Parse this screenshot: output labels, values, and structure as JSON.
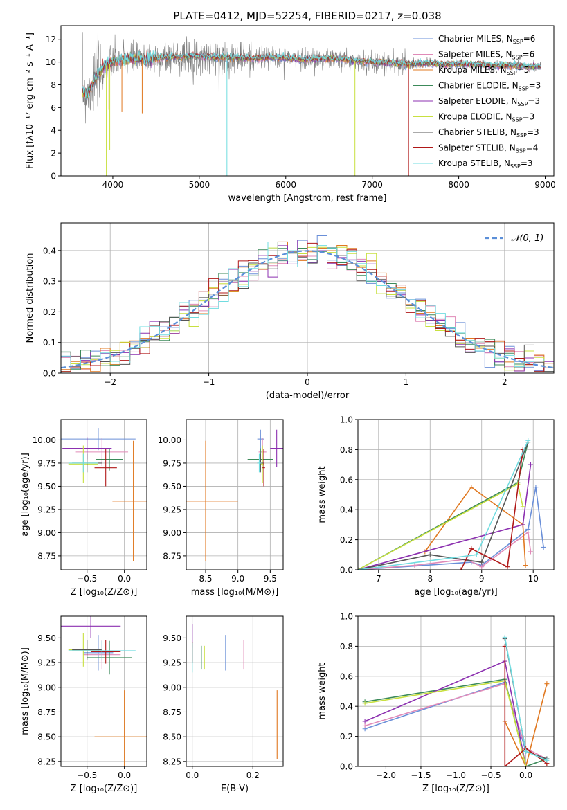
{
  "figure_title": "PLATE=0412, MJD=52254, FIBERID=0217, z=0.038",
  "colors": {
    "Chabrier MILES": "#6a8fd8",
    "Salpeter MILES": "#e08ab8",
    "Kroupa MILES": "#e07820",
    "Chabrier ELODIE": "#3c8a5a",
    "Salpeter ELODIE": "#8c30b0",
    "Kroupa ELODIE": "#c8e040",
    "Chabrier STELIB": "#555555",
    "Salpeter STELIB": "#b01818",
    "Kroupa STELIB": "#70dce0"
  },
  "chart_data": [
    {
      "type": "line",
      "id": "spectrum",
      "xlabel": "wavelength [Angstrom, rest frame]",
      "ylabel": "Flux [fλ10⁻¹⁷ erg cm⁻² s⁻¹ A⁻¹]",
      "xlim": [
        3400,
        9100
      ],
      "ylim": [
        0,
        13.2
      ],
      "xticks": [
        4000,
        5000,
        6000,
        7000,
        8000,
        9000
      ],
      "yticks": [
        0,
        2,
        4,
        6,
        8,
        10,
        12
      ],
      "grid": false,
      "legend_position": "top-right",
      "legend": [
        {
          "name": "Chabrier MILES",
          "nssp": "6"
        },
        {
          "name": "Salpeter MILES",
          "nssp": "6"
        },
        {
          "name": "Kroupa MILES",
          "nssp": "5"
        },
        {
          "name": "Chabrier ELODIE",
          "nssp": "3"
        },
        {
          "name": "Salpeter ELODIE",
          "nssp": "3"
        },
        {
          "name": "Kroupa ELODIE",
          "nssp": "3"
        },
        {
          "name": "Chabrier STELIB",
          "nssp": "3"
        },
        {
          "name": "Salpeter STELIB",
          "nssp": "4"
        },
        {
          "name": "Kroupa STELIB",
          "nssp": "3"
        }
      ],
      "data_continuum": {
        "x": [
          3650,
          3700,
          3750,
          3800,
          3900,
          4000,
          4200,
          4400,
          4600,
          4800,
          5000,
          5200,
          5400,
          5600,
          5800,
          6000,
          6200,
          6400,
          6600,
          6800,
          7000,
          7200,
          7400,
          7600,
          7800,
          8000,
          8200,
          8400,
          8600,
          8800,
          8950
        ],
        "y": [
          7.5,
          7.2,
          7.8,
          8.6,
          9.6,
          10.0,
          10.3,
          10.2,
          10.4,
          10.5,
          10.5,
          10.4,
          10.4,
          10.3,
          10.4,
          10.4,
          10.2,
          10.3,
          10.3,
          10.1,
          10.0,
          9.9,
          9.8,
          9.9,
          9.8,
          9.8,
          9.8,
          9.7,
          9.7,
          9.6,
          9.6
        ]
      },
      "dips": [
        {
          "series": "Kroupa ELODIE",
          "x": 3925,
          "y": 0
        },
        {
          "series": "Kroupa MILES",
          "x": 3955,
          "y": 5.8
        },
        {
          "series": "Kroupa ELODIE",
          "x": 3965,
          "y": 2.3
        },
        {
          "series": "Kroupa MILES",
          "x": 4105,
          "y": 5.6
        },
        {
          "series": "Kroupa MILES",
          "x": 4340,
          "y": 5.5
        },
        {
          "series": "Kroupa STELIB",
          "x": 5320,
          "y": 0
        },
        {
          "series": "Kroupa ELODIE",
          "x": 6800,
          "y": 0
        },
        {
          "series": "Salpeter STELIB",
          "x": 7420,
          "y": 0
        }
      ]
    },
    {
      "type": "histogram",
      "id": "residuals",
      "xlabel": "(data-model)/error",
      "ylabel": "Normed distribution",
      "xlim": [
        -2.5,
        2.5
      ],
      "ylim": [
        0,
        0.49
      ],
      "xticks": [
        -2,
        -1,
        0,
        1,
        2
      ],
      "yticks": [
        0.0,
        0.1,
        0.2,
        0.3,
        0.4
      ],
      "grid": true,
      "legend_position": "top-right",
      "reference_curve": {
        "name": "𝒩(0, 1)",
        "mean": 0,
        "sigma": 1,
        "color": "#5b8fd8"
      },
      "bin_width": 0.1
    },
    {
      "type": "errorbar",
      "id": "age-vs-Z",
      "xlabel": "Z [log₁₀(Z/Z⊙)]",
      "ylabel": "age  [log₁₀(age/yr)]",
      "xlim": [
        -0.85,
        0.3
      ],
      "ylim": [
        8.6,
        10.22
      ],
      "xticks": [
        -0.5,
        0.0
      ],
      "yticks": [
        8.75,
        9.0,
        9.25,
        9.5,
        9.75,
        10.0
      ],
      "grid": true,
      "points": [
        {
          "series": "Chabrier MILES",
          "x": -0.35,
          "xerr": 0.5,
          "y": 10.01,
          "yerr": 0.12
        },
        {
          "series": "Salpeter MILES",
          "x": -0.3,
          "xerr": 0.35,
          "y": 9.87,
          "yerr": 0.15
        },
        {
          "series": "Kroupa MILES",
          "x": 0.12,
          "xerr": 0.28,
          "y": 9.34,
          "yerr": 0.65
        },
        {
          "series": "Chabrier ELODIE",
          "x": -0.2,
          "xerr": 0.18,
          "y": 9.79,
          "yerr": 0.12
        },
        {
          "series": "Salpeter ELODIE",
          "x": -0.5,
          "xerr": 0.33,
          "y": 9.91,
          "yerr": 0.12
        },
        {
          "series": "Kroupa ELODIE",
          "x": -0.55,
          "xerr": 0.2,
          "y": 9.74,
          "yerr": 0.2
        },
        {
          "series": "Chabrier STELIB",
          "x": -0.5,
          "xerr": 0.2,
          "y": 9.75,
          "yerr": 0.1
        },
        {
          "series": "Salpeter STELIB",
          "x": -0.25,
          "xerr": 0.15,
          "y": 9.7,
          "yerr": 0.2
        },
        {
          "series": "Kroupa STELIB",
          "x": -0.55,
          "xerr": 0.2,
          "y": 9.75,
          "yerr": 0.1
        }
      ]
    },
    {
      "type": "errorbar",
      "id": "age-vs-mass",
      "xlabel": "mass [log₁₀(M/M⊙)]",
      "ylabel": "",
      "xlim": [
        8.2,
        9.7
      ],
      "ylim": [
        8.6,
        10.22
      ],
      "xticks": [
        8.5,
        9.0,
        9.5
      ],
      "yticks": [
        8.75,
        9.0,
        9.25,
        9.5,
        9.75,
        10.0
      ],
      "grid": true,
      "points": [
        {
          "series": "Chabrier MILES",
          "x": 9.35,
          "xerr": 0.05,
          "y": 10.01,
          "yerr": 0.1
        },
        {
          "series": "Salpeter MILES",
          "x": 9.38,
          "xerr": 0.06,
          "y": 9.87,
          "yerr": 0.15
        },
        {
          "series": "Kroupa MILES",
          "x": 8.5,
          "xerr": 0.5,
          "y": 9.34,
          "yerr": 0.65
        },
        {
          "series": "Chabrier ELODIE",
          "x": 9.35,
          "xerr": 0.2,
          "y": 9.79,
          "yerr": 0.12
        },
        {
          "series": "Salpeter ELODIE",
          "x": 9.6,
          "xerr": 0.1,
          "y": 9.91,
          "yerr": 0.2
        },
        {
          "series": "Kroupa ELODIE",
          "x": 9.38,
          "xerr": 0.03,
          "y": 9.74,
          "yerr": 0.2
        },
        {
          "series": "Chabrier STELIB",
          "x": 9.35,
          "xerr": 0.05,
          "y": 9.75,
          "yerr": 0.1
        },
        {
          "series": "Salpeter STELIB",
          "x": 9.4,
          "xerr": 0.02,
          "y": 9.7,
          "yerr": 0.2
        },
        {
          "series": "Kroupa STELIB",
          "x": 9.33,
          "xerr": 0.03,
          "y": 9.75,
          "yerr": 0.1
        }
      ]
    },
    {
      "type": "line",
      "id": "mass-weight-vs-age",
      "xlabel": "age  [log₁₀(age/yr)]",
      "ylabel": "mass weight",
      "xlim": [
        6.6,
        10.4
      ],
      "ylim": [
        0,
        1
      ],
      "xticks": [
        7,
        8,
        9,
        10
      ],
      "yticks": [
        0.0,
        0.2,
        0.4,
        0.6,
        0.8,
        1.0
      ],
      "grid": true,
      "series": [
        {
          "name": "Chabrier MILES",
          "x": [
            6.6,
            8.8,
            9.0,
            9.9,
            10.05,
            10.2
          ],
          "y": [
            0.0,
            0.05,
            0.03,
            0.27,
            0.55,
            0.15
          ]
        },
        {
          "name": "Salpeter MILES",
          "x": [
            6.6,
            7.7,
            8.7,
            9.0,
            9.9,
            9.95
          ],
          "y": [
            0.0,
            0.03,
            0.07,
            0.02,
            0.25,
            0.12
          ]
        },
        {
          "name": "Kroupa MILES",
          "x": [
            7.9,
            8.8,
            9.8,
            9.85
          ],
          "y": [
            0.12,
            0.55,
            0.3,
            0.03
          ]
        },
        {
          "name": "Chabrier ELODIE",
          "x": [
            6.6,
            9.7,
            9.9
          ],
          "y": [
            0.0,
            0.58,
            0.85
          ]
        },
        {
          "name": "Salpeter ELODIE",
          "x": [
            6.6,
            9.8,
            9.95
          ],
          "y": [
            0.0,
            0.3,
            0.7
          ]
        },
        {
          "name": "Kroupa ELODIE",
          "x": [
            6.6,
            9.7,
            9.8
          ],
          "y": [
            0.0,
            0.57,
            0.42
          ]
        },
        {
          "name": "Chabrier STELIB",
          "x": [
            6.6,
            8.0,
            9.0,
            9.9
          ],
          "y": [
            0.0,
            0.1,
            0.05,
            0.85
          ]
        },
        {
          "name": "Salpeter STELIB",
          "x": [
            8.6,
            8.8,
            9.5,
            9.8
          ],
          "y": [
            0.0,
            0.14,
            0.02,
            0.8
          ]
        },
        {
          "name": "Kroupa STELIB",
          "x": [
            6.6,
            8.9,
            9.9
          ],
          "y": [
            0.0,
            0.1,
            0.86
          ]
        }
      ]
    },
    {
      "type": "errorbar",
      "id": "mass-vs-Z",
      "xlabel": "Z [log₁₀(Z/Z⊙)]",
      "ylabel": "mass [log₁₀(M/M⊙)]",
      "xlim": [
        -0.85,
        0.3
      ],
      "ylim": [
        8.2,
        9.72
      ],
      "xticks": [
        -0.5,
        0.0
      ],
      "yticks": [
        8.25,
        8.5,
        8.75,
        9.0,
        9.25,
        9.5
      ],
      "grid": true,
      "points": [
        {
          "series": "Chabrier MILES",
          "x": -0.35,
          "xerr": 0.2,
          "y": 9.35,
          "yerr": 0.18
        },
        {
          "series": "Salpeter MILES",
          "x": -0.3,
          "xerr": 0.25,
          "y": 9.33,
          "yerr": 0.15
        },
        {
          "series": "Kroupa MILES",
          "x": 0.0,
          "xerr": 0.4,
          "y": 8.5,
          "yerr": 0.47
        },
        {
          "series": "Chabrier ELODIE",
          "x": -0.2,
          "xerr": 0.3,
          "y": 9.3,
          "yerr": 0.17
        },
        {
          "series": "Salpeter ELODIE",
          "x": -0.45,
          "xerr": 0.4,
          "y": 9.62,
          "yerr": 0.12
        },
        {
          "series": "Kroupa ELODIE",
          "x": -0.55,
          "xerr": 0.2,
          "y": 9.38,
          "yerr": 0.17
        },
        {
          "series": "Chabrier STELIB",
          "x": -0.5,
          "xerr": 0.2,
          "y": 9.38,
          "yerr": 0.1
        },
        {
          "series": "Salpeter STELIB",
          "x": -0.25,
          "xerr": 0.2,
          "y": 9.36,
          "yerr": 0.12
        },
        {
          "series": "Kroupa STELIB",
          "x": -0.3,
          "xerr": 0.45,
          "y": 9.37,
          "yerr": 0.1
        }
      ]
    },
    {
      "type": "errorbar",
      "id": "mass-vs-ebv",
      "xlabel": "E(B-V)",
      "ylabel": "",
      "xlim": [
        -0.02,
        0.3
      ],
      "ylim": [
        8.2,
        9.72
      ],
      "xticks": [
        0.0,
        0.2
      ],
      "yticks": [
        8.25,
        8.5,
        8.75,
        9.0,
        9.25,
        9.5
      ],
      "grid": true,
      "points": [
        {
          "series": "Chabrier MILES",
          "x": 0.11,
          "y": 9.35,
          "yerr": 0.18
        },
        {
          "series": "Salpeter MILES",
          "x": 0.17,
          "y": 9.33,
          "yerr": 0.15
        },
        {
          "series": "Kroupa MILES",
          "x": 0.28,
          "y": 8.62,
          "yerr": 0.35
        },
        {
          "series": "Chabrier ELODIE",
          "x": 0.03,
          "y": 9.3,
          "yerr": 0.12
        },
        {
          "series": "Salpeter ELODIE",
          "x": 0.0,
          "y": 9.52,
          "yerr": 0.12
        },
        {
          "series": "Kroupa ELODIE",
          "x": 0.04,
          "y": 9.3,
          "yerr": 0.12
        },
        {
          "series": "Chabrier STELIB",
          "x": 0.0,
          "y": 9.35,
          "yerr": 0.1
        },
        {
          "series": "Salpeter STELIB",
          "x": 0.0,
          "y": 9.36,
          "yerr": 0.1
        },
        {
          "series": "Kroupa STELIB",
          "x": 0.0,
          "y": 9.3,
          "yerr": 0.15
        }
      ]
    },
    {
      "type": "line",
      "id": "mass-weight-vs-Z",
      "xlabel": "Z [log₁₀(Z/Z⊙)]",
      "ylabel": "mass weight",
      "xlim": [
        -2.4,
        0.4
      ],
      "ylim": [
        0,
        1
      ],
      "xticks": [
        -2.0,
        -1.5,
        -1.0,
        -0.5,
        0.0
      ],
      "yticks": [
        0.0,
        0.2,
        0.4,
        0.6,
        0.8,
        1.0
      ],
      "grid": true,
      "series": [
        {
          "name": "Chabrier MILES",
          "x": [
            -2.3,
            -0.3,
            0.0,
            0.3
          ],
          "y": [
            0.25,
            0.56,
            0.1,
            0.05
          ]
        },
        {
          "name": "Salpeter MILES",
          "x": [
            -2.3,
            -0.3,
            0.0,
            0.3
          ],
          "y": [
            0.27,
            0.55,
            0.12,
            0.05
          ]
        },
        {
          "name": "Kroupa MILES",
          "x": [
            -0.3,
            0.0,
            0.3
          ],
          "y": [
            0.3,
            0.0,
            0.55
          ]
        },
        {
          "name": "Chabrier ELODIE",
          "x": [
            -2.3,
            -0.3,
            0.0,
            0.3
          ],
          "y": [
            0.43,
            0.58,
            0.0,
            0.05
          ]
        },
        {
          "name": "Salpeter ELODIE",
          "x": [
            -2.3,
            -0.3,
            0.0,
            0.3
          ],
          "y": [
            0.3,
            0.7,
            0.0,
            0.0
          ]
        },
        {
          "name": "Kroupa ELODIE",
          "x": [
            -2.3,
            -0.3,
            0.0,
            0.3
          ],
          "y": [
            0.42,
            0.57,
            0.0,
            0.0
          ]
        },
        {
          "name": "Chabrier STELIB",
          "x": [
            -0.3,
            0.0,
            0.3
          ],
          "y": [
            0.85,
            0.1,
            0.05
          ]
        },
        {
          "name": "Salpeter STELIB",
          "x": [
            -0.3,
            -0.3,
            0.0,
            0.3
          ],
          "y": [
            0.8,
            0.0,
            0.12,
            0.02
          ]
        },
        {
          "name": "Kroupa STELIB",
          "x": [
            -0.3,
            0.0,
            0.3
          ],
          "y": [
            0.86,
            0.1,
            0.04
          ]
        }
      ]
    }
  ]
}
